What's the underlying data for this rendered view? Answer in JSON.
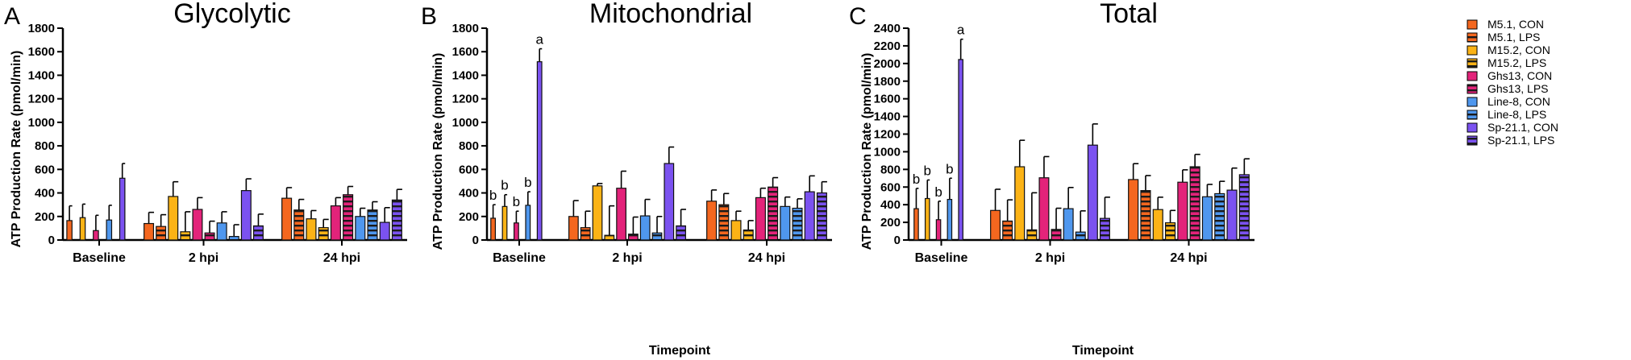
{
  "figure": {
    "legend": [
      {
        "label": "M5.1, CON",
        "color": "#f4671f",
        "hatch": false
      },
      {
        "label": "M5.1, LPS",
        "color": "#f4671f",
        "hatch": true
      },
      {
        "label": "M15.2, CON",
        "color": "#fbb316",
        "hatch": false
      },
      {
        "label": "M15.2, LPS",
        "color": "#fbb316",
        "hatch": true
      },
      {
        "label": "Ghs13, CON",
        "color": "#e3237a",
        "hatch": false
      },
      {
        "label": "Ghs13, LPS",
        "color": "#e3237a",
        "hatch": true
      },
      {
        "label": "Line-8, CON",
        "color": "#4f97ee",
        "hatch": false
      },
      {
        "label": "Line-8, LPS",
        "color": "#4f97ee",
        "hatch": true
      },
      {
        "label": "Sp-21.1, CON",
        "color": "#7b52f0",
        "hatch": false
      },
      {
        "label": "Sp-21.1, LPS",
        "color": "#7b52f0",
        "hatch": true
      }
    ]
  },
  "chart_data": [
    {
      "type": "bar",
      "panel": "A",
      "title": "Glycolytic",
      "ylabel": "ATP Production Rate (pmol/min)",
      "xlabel": "",
      "categories": [
        "Baseline",
        "2 hpi",
        "24 hpi"
      ],
      "ylim": [
        0,
        1800
      ],
      "yticks": [
        0,
        200,
        400,
        600,
        800,
        1000,
        1200,
        1400,
        1600,
        1800
      ],
      "series": [
        {
          "name": "M5.1, CON",
          "values": [
            165,
            140,
            355
          ],
          "errors": [
            125,
            95,
            90
          ],
          "letters": [
            "",
            "",
            ""
          ]
        },
        {
          "name": "M5.1, LPS",
          "values": null,
          "errors": null,
          "letters": null
        },
        {
          "name": "M15.2, CON",
          "values": [
            190,
            370,
            180
          ],
          "errors": [
            115,
            125,
            70
          ],
          "letters": [
            "",
            "",
            ""
          ]
        },
        {
          "name": "M15.2, LPS",
          "values": null,
          "errors": null,
          "letters": null
        },
        {
          "name": "Ghs13, CON",
          "values": [
            80,
            260,
            290
          ],
          "errors": [
            130,
            100,
            70
          ],
          "letters": [
            "",
            "",
            ""
          ]
        },
        {
          "name": "Ghs13, LPS",
          "values": null,
          "errors": null,
          "letters": null
        },
        {
          "name": "Line-8, CON",
          "values": [
            170,
            145,
            200
          ],
          "errors": [
            125,
            95,
            70
          ],
          "letters": [
            "",
            "",
            ""
          ]
        },
        {
          "name": "Line-8, LPS",
          "values": null,
          "errors": null,
          "letters": null
        },
        {
          "name": "Sp-21.1, CON",
          "values": [
            525,
            420,
            150
          ],
          "errors": [
            125,
            100,
            125
          ],
          "letters": [
            "",
            "",
            ""
          ]
        },
        {
          "name": "Sp-21.1, LPS",
          "values": null,
          "errors": null,
          "letters": null
        }
      ],
      "bars": [
        {
          "v": [
            165,
            null,
            190,
            null,
            80,
            null,
            170,
            null,
            525,
            null
          ],
          "e": [
            125,
            null,
            115,
            null,
            130,
            null,
            125,
            null,
            125,
            null
          ]
        },
        {
          "v": [
            140,
            115,
            370,
            70,
            260,
            60,
            145,
            30,
            420,
            120
          ],
          "e": [
            95,
            100,
            125,
            170,
            100,
            100,
            95,
            100,
            100,
            100
          ]
        },
        {
          "v": [
            355,
            255,
            180,
            105,
            290,
            385,
            200,
            255,
            150,
            340
          ],
          "e": [
            90,
            90,
            70,
            70,
            70,
            70,
            70,
            70,
            125,
            90
          ]
        }
      ],
      "annotations": [
        [
          "",
          "",
          "",
          "",
          "",
          "",
          "",
          "",
          "",
          ""
        ],
        [
          "",
          "",
          "",
          "",
          "",
          "",
          "",
          "",
          "",
          ""
        ],
        [
          "",
          "",
          "",
          "",
          "",
          "",
          "",
          "",
          "",
          ""
        ]
      ]
    },
    {
      "type": "bar",
      "panel": "B",
      "title": "Mitochondrial",
      "ylabel": "ATP Production Rate (pmol/min)",
      "xlabel": "Timepoint",
      "categories": [
        "Baseline",
        "2 hpi",
        "24 hpi"
      ],
      "ylim": [
        0,
        1800
      ],
      "yticks": [
        0,
        200,
        400,
        600,
        800,
        1000,
        1200,
        1400,
        1600,
        1800
      ],
      "bars": [
        {
          "v": [
            185,
            null,
            285,
            null,
            145,
            null,
            295,
            null,
            1515,
            null
          ],
          "e": [
            115,
            null,
            100,
            null,
            100,
            null,
            115,
            null,
            110,
            null
          ]
        },
        {
          "v": [
            200,
            105,
            460,
            40,
            440,
            50,
            205,
            60,
            650,
            120
          ],
          "e": [
            135,
            140,
            20,
            250,
            145,
            145,
            140,
            140,
            140,
            140
          ]
        },
        {
          "v": [
            330,
            300,
            165,
            85,
            360,
            450,
            285,
            270,
            410,
            400
          ],
          "e": [
            95,
            95,
            80,
            80,
            80,
            80,
            80,
            80,
            135,
            95
          ]
        }
      ],
      "annotations": [
        [
          "b",
          "",
          "b",
          "",
          "b",
          "",
          "b",
          "",
          "a",
          ""
        ],
        [
          "",
          "",
          "",
          "",
          "",
          "",
          "",
          "",
          "",
          ""
        ],
        [
          "",
          "",
          "",
          "",
          "",
          "",
          "",
          "",
          "",
          ""
        ]
      ]
    },
    {
      "type": "bar",
      "panel": "C",
      "title": "Total",
      "ylabel": "ATP Production Rate (pmol/min)",
      "xlabel": "Timepoint",
      "categories": [
        "Baseline",
        "2 hpi",
        "24 hpi"
      ],
      "ylim": [
        0,
        2400
      ],
      "yticks": [
        0,
        200,
        400,
        600,
        800,
        1000,
        1200,
        1400,
        1600,
        1800,
        2000,
        2200,
        2400
      ],
      "bars": [
        {
          "v": [
            355,
            null,
            470,
            null,
            230,
            null,
            460,
            null,
            2045,
            null
          ],
          "e": [
            230,
            null,
            210,
            null,
            210,
            null,
            240,
            null,
            230,
            null
          ]
        },
        {
          "v": [
            335,
            215,
            830,
            115,
            705,
            120,
            355,
            90,
            1075,
            245
          ],
          "e": [
            240,
            240,
            300,
            420,
            240,
            240,
            240,
            240,
            240,
            240
          ]
        },
        {
          "v": [
            685,
            560,
            345,
            195,
            655,
            830,
            490,
            525,
            565,
            740
          ],
          "e": [
            180,
            170,
            140,
            140,
            140,
            140,
            140,
            140,
            250,
            180
          ]
        }
      ],
      "annotations": [
        [
          "b",
          "",
          "b",
          "",
          "b",
          "",
          "b",
          "",
          "a",
          ""
        ],
        [
          "",
          "",
          "",
          "",
          "",
          "",
          "",
          "",
          "",
          ""
        ],
        [
          "",
          "",
          "",
          "",
          "",
          "",
          "",
          "",
          "",
          ""
        ]
      ]
    }
  ]
}
